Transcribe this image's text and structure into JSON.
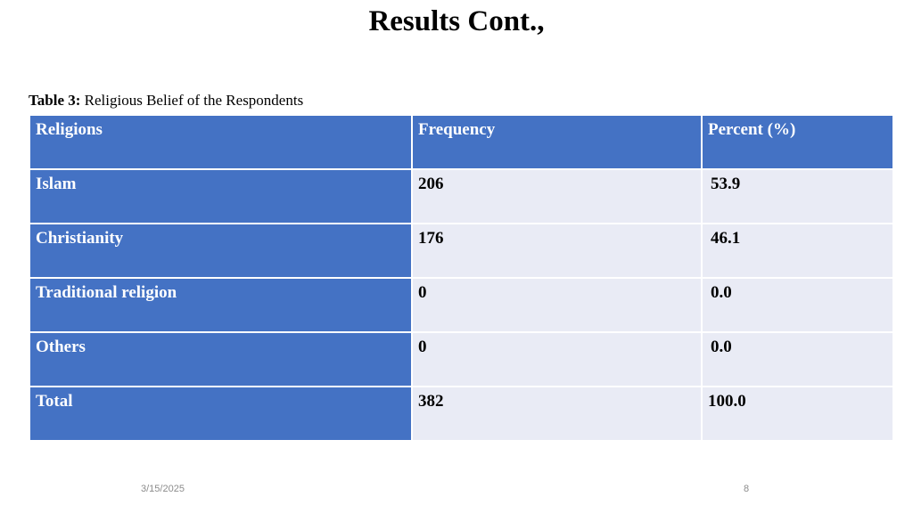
{
  "slide": {
    "title": "Results Cont.,",
    "caption_label": "Table 3:",
    "caption_text": " Religious Belief of the Respondents"
  },
  "table": {
    "headers": [
      "Religions",
      "Frequency",
      "Percent (%)"
    ],
    "rows": [
      [
        "Islam",
        "206",
        "53.9"
      ],
      [
        "Christianity",
        "176",
        "46.1"
      ],
      [
        "Traditional religion",
        "0",
        "0.0"
      ],
      [
        "Others",
        "0",
        "0.0"
      ],
      [
        "Total",
        "382",
        "100.0"
      ]
    ]
  },
  "footer": {
    "date": "3/15/2025",
    "page_number": "8"
  },
  "colors": {
    "header_fill": "#4472c4",
    "body_fill": "#e9ebf5"
  }
}
